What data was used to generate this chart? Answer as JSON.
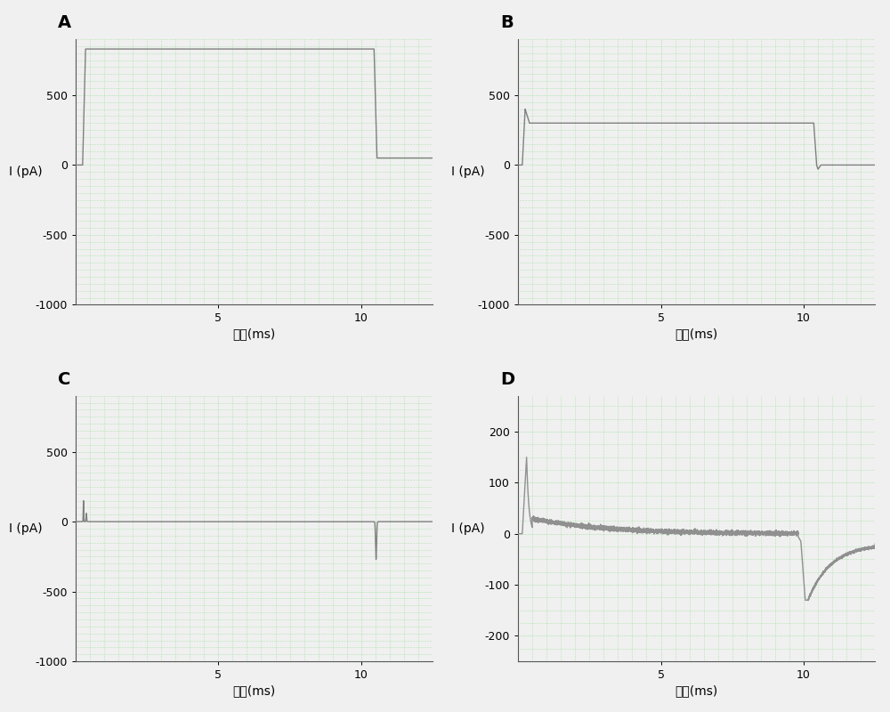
{
  "panels": [
    "A",
    "B",
    "C",
    "D"
  ],
  "background_color": "#f0f0f0",
  "plot_bg_color": "#f0f0f0",
  "grid_color": "#33cc33",
  "line_color_A": "#808080",
  "line_color_B": "#808080",
  "line_color_C": "#808080",
  "line_color_D": "#909090",
  "xlabel": "时间(ms)",
  "ylabel": "I (pA)",
  "xlim": [
    0,
    12.5
  ],
  "ylim_A": [
    -1000,
    900
  ],
  "ylim_B": [
    -1000,
    900
  ],
  "ylim_C": [
    -1000,
    900
  ],
  "ylim_D": [
    -250,
    270
  ],
  "yticks_A": [
    -1000,
    -500,
    0,
    500
  ],
  "yticks_B": [
    -1000,
    -500,
    0,
    500
  ],
  "yticks_C": [
    -1000,
    -500,
    0,
    500
  ],
  "yticks_D": [
    -200,
    -100,
    0,
    100,
    200
  ],
  "xticks": [
    5,
    10
  ],
  "panel_label_fontsize": 14,
  "axis_label_fontsize": 10,
  "tick_fontsize": 9,
  "line_width": 1.0,
  "grid_alpha": 0.6,
  "grid_linewidth": 0.4,
  "grid_minor_x_step": 0.5,
  "grid_minor_y_step_ABC": 50,
  "grid_minor_y_step_D": 25
}
